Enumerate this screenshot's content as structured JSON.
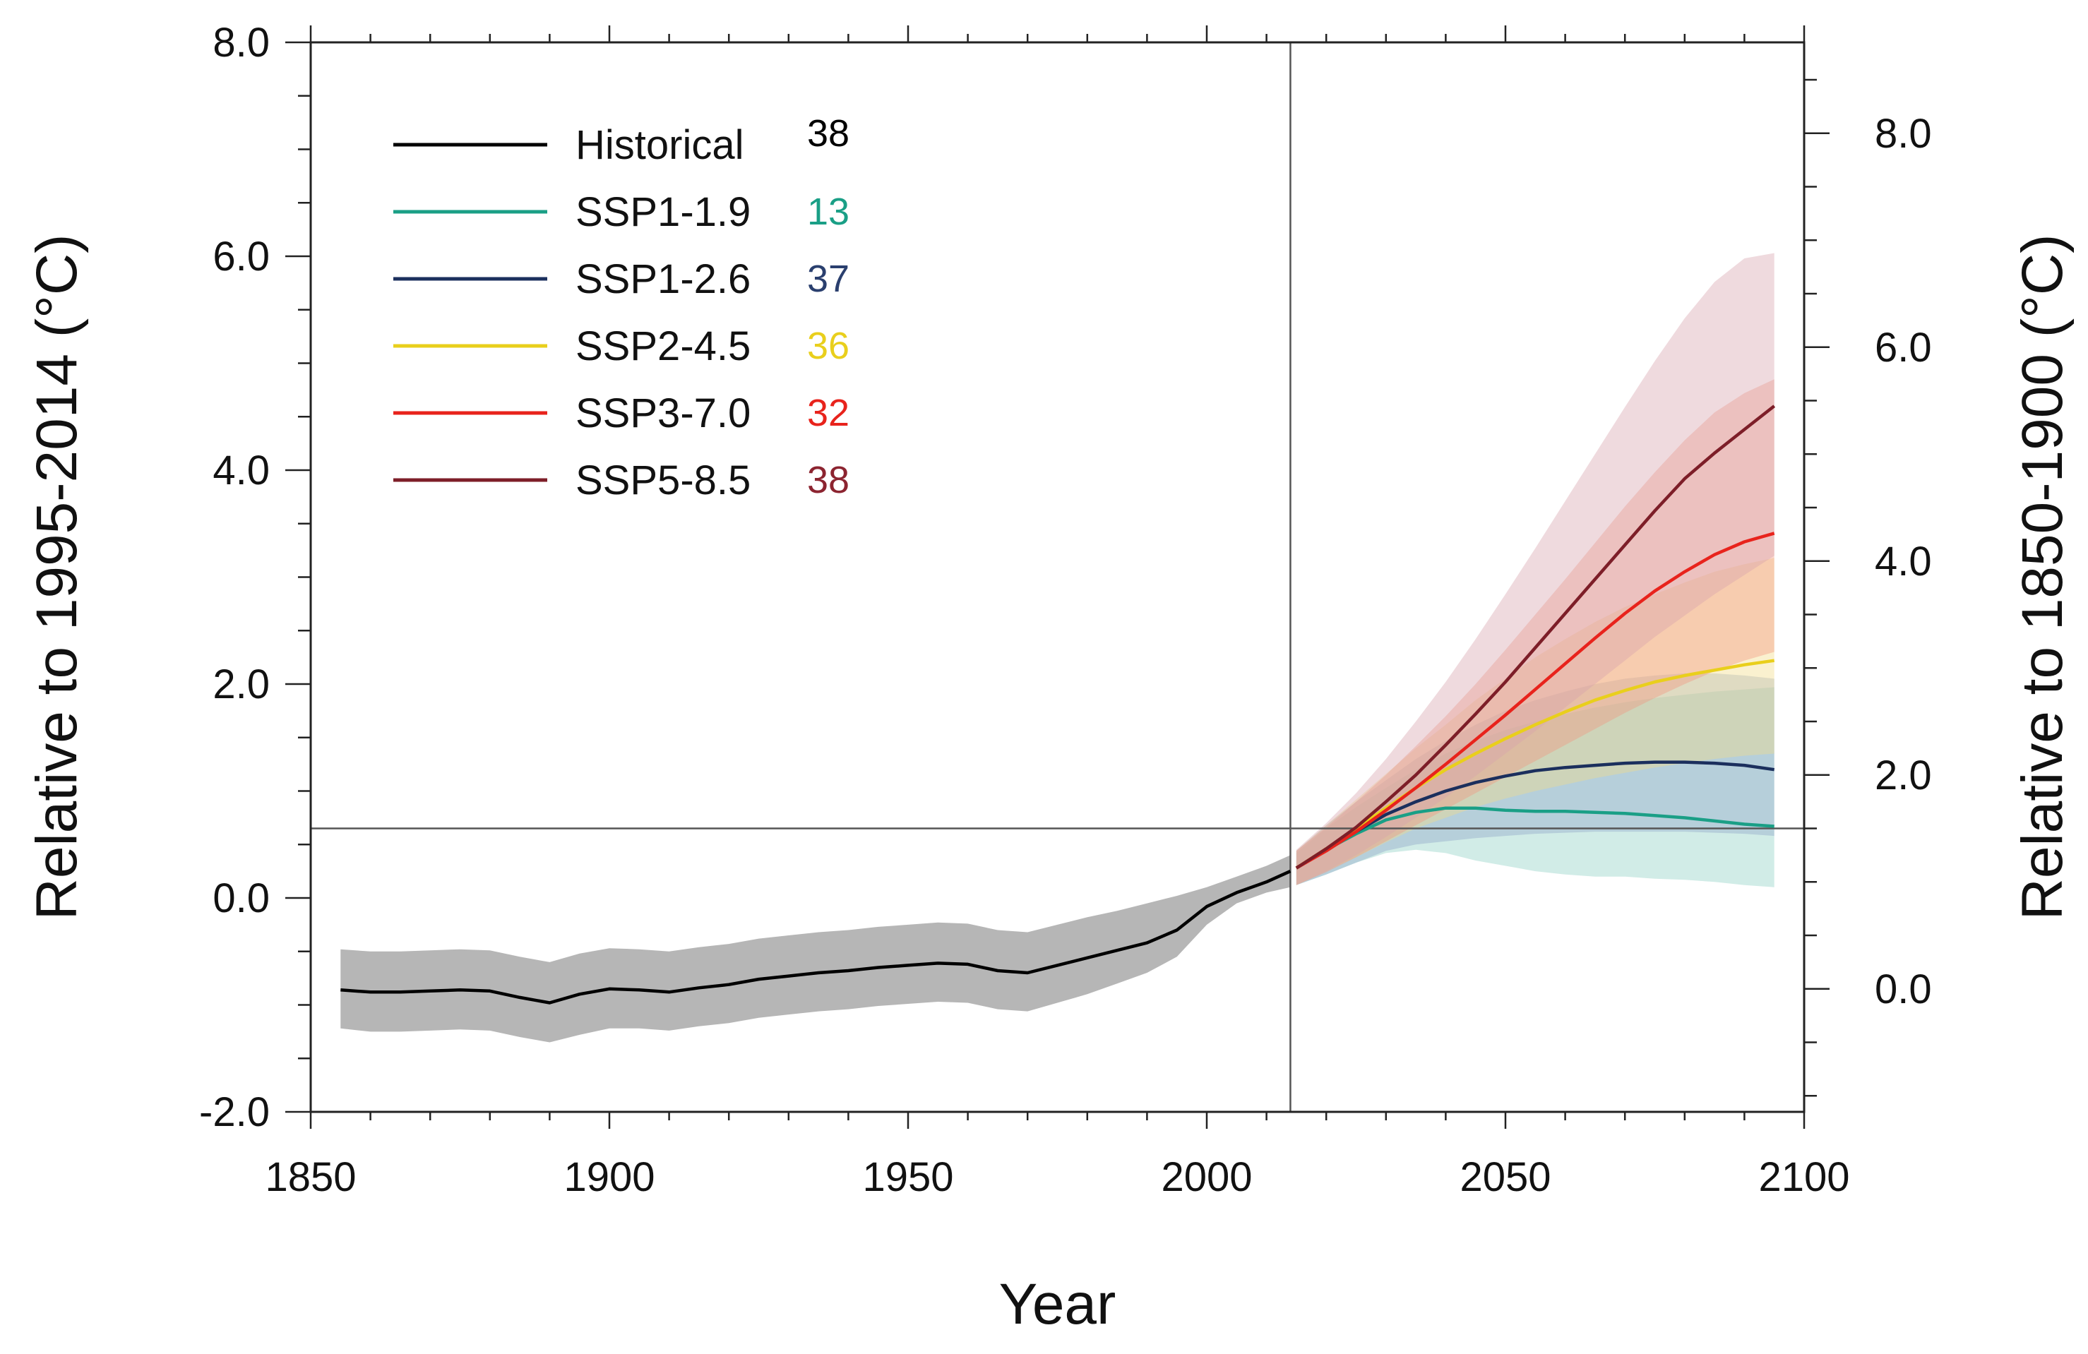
{
  "chart_data": {
    "type": "line",
    "xlabel": "Year",
    "ylabel_left": "Relative to 1995-2014 (°C)",
    "ylabel_right": "Relative to 1850-1900 (°C)",
    "xlim": [
      1850,
      2100
    ],
    "ylim": [
      -2.0,
      8.0
    ],
    "x_ticks": [
      1850,
      1900,
      1950,
      2000,
      2050,
      2100
    ],
    "x_tick_labels": [
      "1850",
      "1900",
      "1950",
      "2000",
      "2050",
      "2100"
    ],
    "y_ticks_left": [
      -2.0,
      0.0,
      2.0,
      4.0,
      6.0,
      8.0
    ],
    "y_tick_labels_left": [
      "-2.0",
      "0.0",
      "2.0",
      "4.0",
      "6.0",
      "8.0"
    ],
    "right_axis_offset": -0.85,
    "y_ticks_right": [
      0.0,
      2.0,
      4.0,
      6.0,
      8.0
    ],
    "y_tick_labels_right": [
      "0.0",
      "2.0",
      "4.0",
      "6.0",
      "8.0"
    ],
    "reference_lines": {
      "vertical_x": 2014,
      "horizontal_y": 0.65
    },
    "legend_position": "top-left",
    "series": [
      {
        "name": "Historical",
        "count": "38",
        "color": "#000000",
        "count_color": "#000000",
        "band_color": "#9e9e9e",
        "x": [
          1855,
          1860,
          1865,
          1870,
          1875,
          1880,
          1885,
          1890,
          1895,
          1900,
          1905,
          1910,
          1915,
          1920,
          1925,
          1930,
          1935,
          1940,
          1945,
          1950,
          1955,
          1960,
          1965,
          1970,
          1975,
          1980,
          1985,
          1990,
          1995,
          2000,
          2005,
          2010,
          2014
        ],
        "y": [
          -0.86,
          -0.88,
          -0.88,
          -0.87,
          -0.86,
          -0.87,
          -0.93,
          -0.98,
          -0.9,
          -0.85,
          -0.86,
          -0.88,
          -0.84,
          -0.81,
          -0.76,
          -0.73,
          -0.7,
          -0.68,
          -0.65,
          -0.63,
          -0.61,
          -0.62,
          -0.68,
          -0.7,
          -0.63,
          -0.56,
          -0.49,
          -0.42,
          -0.3,
          -0.08,
          0.05,
          0.15,
          0.25
        ],
        "low": [
          -1.22,
          -1.25,
          -1.25,
          -1.24,
          -1.23,
          -1.24,
          -1.3,
          -1.35,
          -1.28,
          -1.22,
          -1.22,
          -1.24,
          -1.2,
          -1.17,
          -1.12,
          -1.09,
          -1.06,
          -1.04,
          -1.01,
          -0.99,
          -0.97,
          -0.98,
          -1.04,
          -1.06,
          -0.98,
          -0.9,
          -0.8,
          -0.7,
          -0.55,
          -0.25,
          -0.05,
          0.05,
          0.1
        ],
        "high": [
          -0.48,
          -0.5,
          -0.5,
          -0.49,
          -0.48,
          -0.49,
          -0.55,
          -0.6,
          -0.52,
          -0.47,
          -0.48,
          -0.5,
          -0.46,
          -0.43,
          -0.38,
          -0.35,
          -0.32,
          -0.3,
          -0.27,
          -0.25,
          -0.23,
          -0.24,
          -0.3,
          -0.32,
          -0.25,
          -0.18,
          -0.12,
          -0.05,
          0.02,
          0.1,
          0.2,
          0.3,
          0.4
        ]
      },
      {
        "name": "SSP1-1.9",
        "count": "13",
        "color": "#1a9f86",
        "count_color": "#1a9f86",
        "band_color": "#8ccfc4",
        "x": [
          2015,
          2020,
          2025,
          2030,
          2035,
          2040,
          2045,
          2050,
          2055,
          2060,
          2065,
          2070,
          2075,
          2080,
          2085,
          2090,
          2095
        ],
        "y": [
          0.28,
          0.45,
          0.6,
          0.73,
          0.8,
          0.84,
          0.84,
          0.82,
          0.81,
          0.81,
          0.8,
          0.79,
          0.77,
          0.75,
          0.72,
          0.69,
          0.67
        ],
        "low": [
          0.12,
          0.22,
          0.33,
          0.42,
          0.45,
          0.42,
          0.35,
          0.3,
          0.25,
          0.22,
          0.2,
          0.2,
          0.18,
          0.17,
          0.15,
          0.12,
          0.1
        ],
        "high": [
          0.42,
          0.65,
          0.85,
          1.03,
          1.2,
          1.35,
          1.47,
          1.57,
          1.65,
          1.72,
          1.78,
          1.83,
          1.87,
          1.9,
          1.93,
          1.95,
          1.97
        ]
      },
      {
        "name": "SSP1-2.6",
        "count": "37",
        "color": "#1b2f5d",
        "count_color": "#2a3f6e",
        "band_color": "#8ea6c8",
        "x": [
          2015,
          2020,
          2025,
          2030,
          2035,
          2040,
          2045,
          2050,
          2055,
          2060,
          2065,
          2070,
          2075,
          2080,
          2085,
          2090,
          2095
        ],
        "y": [
          0.28,
          0.45,
          0.62,
          0.78,
          0.9,
          1.0,
          1.08,
          1.14,
          1.19,
          1.22,
          1.24,
          1.26,
          1.27,
          1.27,
          1.26,
          1.24,
          1.2
        ],
        "low": [
          0.12,
          0.22,
          0.33,
          0.44,
          0.5,
          0.53,
          0.56,
          0.58,
          0.6,
          0.61,
          0.62,
          0.62,
          0.62,
          0.62,
          0.61,
          0.6,
          0.58
        ],
        "high": [
          0.44,
          0.68,
          0.9,
          1.1,
          1.3,
          1.47,
          1.62,
          1.75,
          1.85,
          1.93,
          2.0,
          2.05,
          2.08,
          2.1,
          2.1,
          2.08,
          2.05
        ]
      },
      {
        "name": "SSP2-4.5",
        "count": "36",
        "color": "#e9cf1c",
        "count_color": "#e9cf1c",
        "band_color": "#f3dc86",
        "x": [
          2015,
          2020,
          2025,
          2030,
          2035,
          2040,
          2045,
          2050,
          2055,
          2060,
          2065,
          2070,
          2075,
          2080,
          2085,
          2090,
          2095
        ],
        "y": [
          0.28,
          0.46,
          0.65,
          0.84,
          1.03,
          1.2,
          1.35,
          1.49,
          1.62,
          1.74,
          1.85,
          1.94,
          2.02,
          2.08,
          2.13,
          2.18,
          2.22
        ],
        "low": [
          0.12,
          0.25,
          0.38,
          0.52,
          0.65,
          0.75,
          0.85,
          0.93,
          1.0,
          1.06,
          1.12,
          1.17,
          1.22,
          1.26,
          1.3,
          1.33,
          1.35
        ],
        "high": [
          0.44,
          0.68,
          0.92,
          1.16,
          1.4,
          1.62,
          1.85,
          2.05,
          2.25,
          2.42,
          2.58,
          2.72,
          2.84,
          2.95,
          3.05,
          3.12,
          3.18
        ]
      },
      {
        "name": "SSP3-7.0",
        "count": "32",
        "color": "#e8231c",
        "count_color": "#e8231c",
        "band_color": "#f2957f",
        "x": [
          2015,
          2020,
          2025,
          2030,
          2035,
          2040,
          2045,
          2050,
          2055,
          2060,
          2065,
          2070,
          2075,
          2080,
          2085,
          2090,
          2095
        ],
        "y": [
          0.28,
          0.44,
          0.62,
          0.82,
          1.03,
          1.25,
          1.48,
          1.71,
          1.95,
          2.19,
          2.43,
          2.66,
          2.87,
          3.05,
          3.21,
          3.33,
          3.41
        ],
        "low": [
          0.12,
          0.24,
          0.38,
          0.53,
          0.68,
          0.83,
          0.98,
          1.13,
          1.28,
          1.43,
          1.58,
          1.73,
          1.87,
          2.0,
          2.12,
          2.22,
          2.3
        ],
        "high": [
          0.44,
          0.66,
          0.9,
          1.15,
          1.42,
          1.7,
          2.0,
          2.32,
          2.65,
          2.98,
          3.32,
          3.66,
          3.98,
          4.28,
          4.54,
          4.72,
          4.85
        ]
      },
      {
        "name": "SSP5-8.5",
        "count": "38",
        "color": "#7d1e28",
        "count_color": "#8c2430",
        "band_color": "#d7a2ac",
        "x": [
          2015,
          2020,
          2025,
          2030,
          2035,
          2040,
          2045,
          2050,
          2055,
          2060,
          2065,
          2070,
          2075,
          2080,
          2085,
          2090,
          2095
        ],
        "y": [
          0.28,
          0.46,
          0.66,
          0.9,
          1.15,
          1.43,
          1.72,
          2.02,
          2.34,
          2.66,
          2.98,
          3.3,
          3.62,
          3.92,
          4.16,
          4.38,
          4.6
        ],
        "low": [
          0.12,
          0.25,
          0.4,
          0.57,
          0.75,
          0.94,
          1.14,
          1.35,
          1.56,
          1.78,
          2.0,
          2.22,
          2.44,
          2.64,
          2.84,
          3.02,
          3.2
        ],
        "high": [
          0.45,
          0.7,
          0.98,
          1.3,
          1.65,
          2.02,
          2.42,
          2.84,
          3.27,
          3.71,
          4.15,
          4.59,
          5.02,
          5.42,
          5.76,
          5.98,
          6.03
        ]
      }
    ]
  }
}
